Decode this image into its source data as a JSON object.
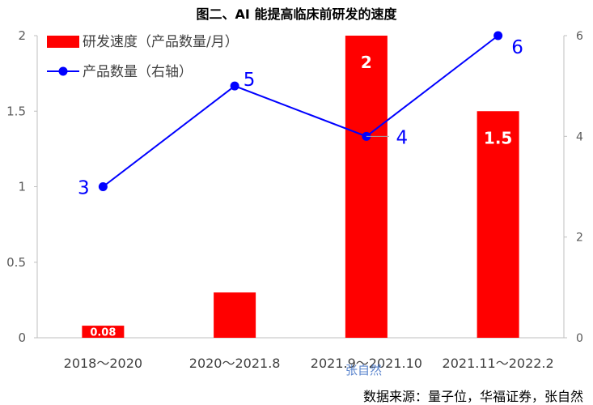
{
  "chart_data": {
    "type": "bar",
    "title": "图二、AI 能提高临床前研发的速度",
    "categories": [
      "2018～2020",
      "2020～2021.8",
      "2021.9～2021.10",
      "2021.11～2022.2"
    ],
    "series": [
      {
        "name": "研发速度（产品数量/月）",
        "type": "bar",
        "axis": "left",
        "color": "#ff0000",
        "values": [
          0.08,
          0.3,
          2,
          1.5
        ],
        "data_labels": [
          "0.08",
          "",
          "2",
          "1.5"
        ]
      },
      {
        "name": "产品数量（右轴）",
        "type": "line",
        "axis": "right",
        "color": "#0000ff",
        "values": [
          3,
          5,
          4,
          6
        ],
        "data_labels": [
          "3",
          "5",
          "4",
          "6"
        ]
      }
    ],
    "y_left": {
      "min": 0,
      "max": 2,
      "ticks": [
        "0",
        "0.5",
        "1",
        "1.5",
        "2"
      ]
    },
    "y_right": {
      "min": 0,
      "max": 6,
      "ticks": [
        "0",
        "2",
        "4",
        "6"
      ]
    },
    "grid": false,
    "legend_position": "top-left"
  },
  "source": "数据来源：量子位，华福证券，张自然",
  "watermark": "张自然"
}
